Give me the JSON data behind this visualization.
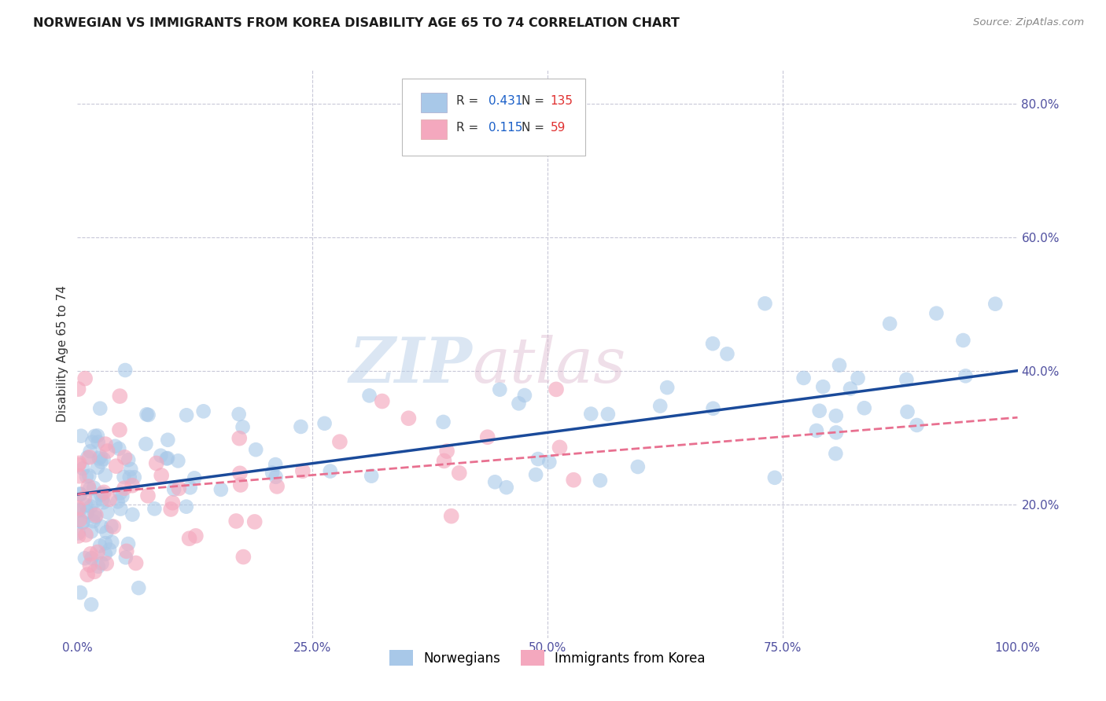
{
  "title": "NORWEGIAN VS IMMIGRANTS FROM KOREA DISABILITY AGE 65 TO 74 CORRELATION CHART",
  "source": "Source: ZipAtlas.com",
  "ylabel": "Disability Age 65 to 74",
  "xlim": [
    0,
    1.0
  ],
  "ylim": [
    0.0,
    0.85
  ],
  "xticks": [
    0.0,
    0.25,
    0.5,
    0.75,
    1.0
  ],
  "xticklabels": [
    "0.0%",
    "25.0%",
    "50.0%",
    "75.0%",
    "100.0%"
  ],
  "yticks": [
    0.0,
    0.2,
    0.4,
    0.6,
    0.8
  ],
  "yticklabels": [
    "",
    "20.0%",
    "40.0%",
    "60.0%",
    "80.0%"
  ],
  "legend1_label": "Norwegians",
  "legend2_label": "Immigrants from Korea",
  "R_norwegian": 0.431,
  "N_norwegian": 135,
  "R_korea": 0.115,
  "N_korea": 59,
  "blue_color": "#a8c8e8",
  "pink_color": "#f4a8be",
  "trendline_blue": "#1a4a9a",
  "trendline_pink": "#e87090",
  "background_color": "#ffffff",
  "grid_color": "#c8c8d8",
  "tick_color": "#5050a0",
  "title_color": "#1a1a1a",
  "source_color": "#888888",
  "nor_intercept": 0.215,
  "nor_slope": 0.185,
  "kor_intercept": 0.215,
  "kor_slope": 0.115
}
